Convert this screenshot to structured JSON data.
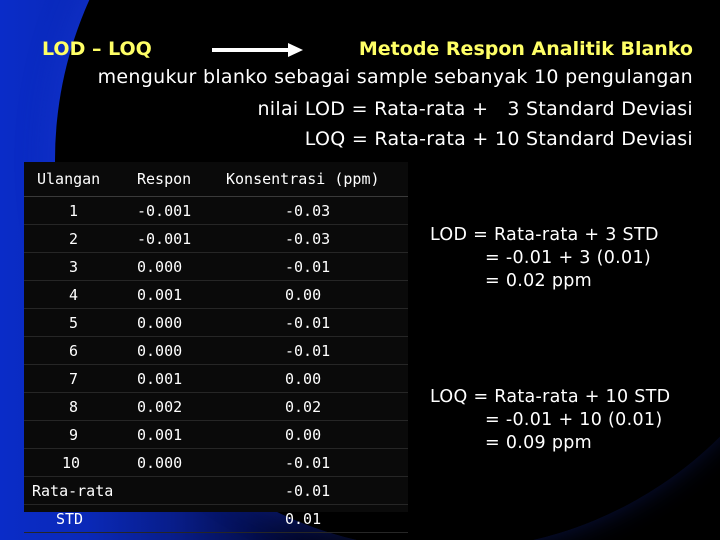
{
  "header": {
    "left_title": "LOD – LOQ",
    "method_title": "Metode Respon Analitik Blanko",
    "description": "mengukur blanko sebagai sample sebanyak 10 pengulangan",
    "lod_formula": "nilai LOD = Rata-rata +   3 Standard Deviasi",
    "loq_formula": "LOQ = Rata-rata + 10 Standard Deviasi"
  },
  "colors": {
    "title_yellow": "#ffff66",
    "text_white": "#ffffff",
    "background_blue": "#0a2cc8",
    "background_black": "#000000"
  },
  "table": {
    "headers": [
      "Ulangan",
      "Respon",
      "Konsentrasi (ppm)"
    ],
    "rows": [
      [
        "1",
        "-0.001",
        "-0.03"
      ],
      [
        "2",
        "-0.001",
        "-0.03"
      ],
      [
        "3",
        "0.000",
        "-0.01"
      ],
      [
        "4",
        "0.001",
        "0.00"
      ],
      [
        "5",
        "0.000",
        "-0.01"
      ],
      [
        "6",
        "0.000",
        "-0.01"
      ],
      [
        "7",
        "0.001",
        "0.00"
      ],
      [
        "8",
        "0.002",
        "0.02"
      ],
      [
        "9",
        "0.001",
        "0.00"
      ],
      [
        "10",
        "0.000",
        "-0.01"
      ]
    ],
    "summary": [
      {
        "label": "Rata-rata",
        "value": "-0.01"
      },
      {
        "label": "STD",
        "value": "0.01"
      }
    ]
  },
  "lod_calc": {
    "line1": "LOD = Rata-rata + 3 STD",
    "line2": "= -0.01 + 3 (0.01)",
    "line3": "= 0.02 ppm"
  },
  "loq_calc": {
    "line1": "LOQ = Rata-rata + 10 STD",
    "line2": "= -0.01 + 10 (0.01)",
    "line3": "= 0.09 ppm"
  }
}
